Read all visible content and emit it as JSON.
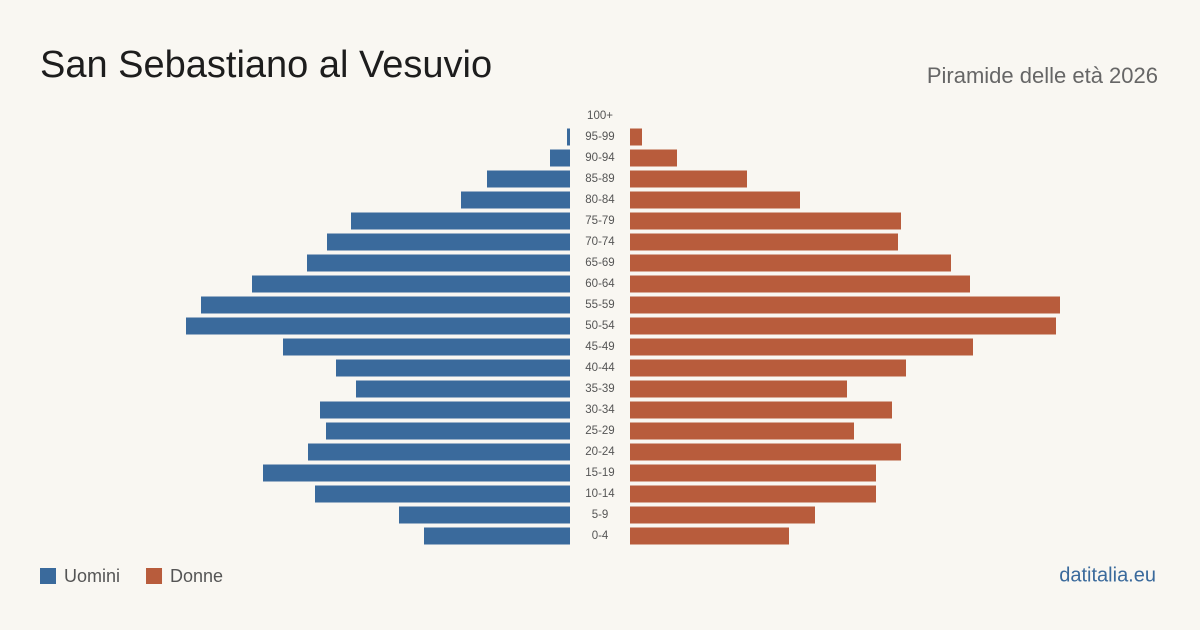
{
  "chart_data": {
    "type": "pyramid",
    "title": "San Sebastiano al Vesuvio",
    "subtitle": "Piramide delle età 2026",
    "source": "datitalia.eu",
    "categories": [
      "100+",
      "95-99",
      "90-94",
      "85-89",
      "80-84",
      "75-79",
      "70-74",
      "65-69",
      "60-64",
      "55-59",
      "50-54",
      "45-49",
      "40-44",
      "35-39",
      "30-34",
      "25-29",
      "20-24",
      "15-19",
      "10-14",
      "5-9",
      "0-4"
    ],
    "series": [
      {
        "name": "Uomini",
        "color": "#3a6a9c",
        "values": [
          0,
          3,
          20,
          83,
          109,
          219,
          243,
          263,
          318,
          369,
          384,
          287,
          234,
          214,
          250,
          244,
          262,
          307,
          255,
          171,
          146
        ]
      },
      {
        "name": "Donne",
        "color": "#b85c3c",
        "values": [
          0,
          12,
          47,
          117,
          170,
          271,
          268,
          321,
          340,
          430,
          426,
          343,
          276,
          217,
          262,
          224,
          271,
          246,
          246,
          185,
          159
        ]
      }
    ]
  }
}
